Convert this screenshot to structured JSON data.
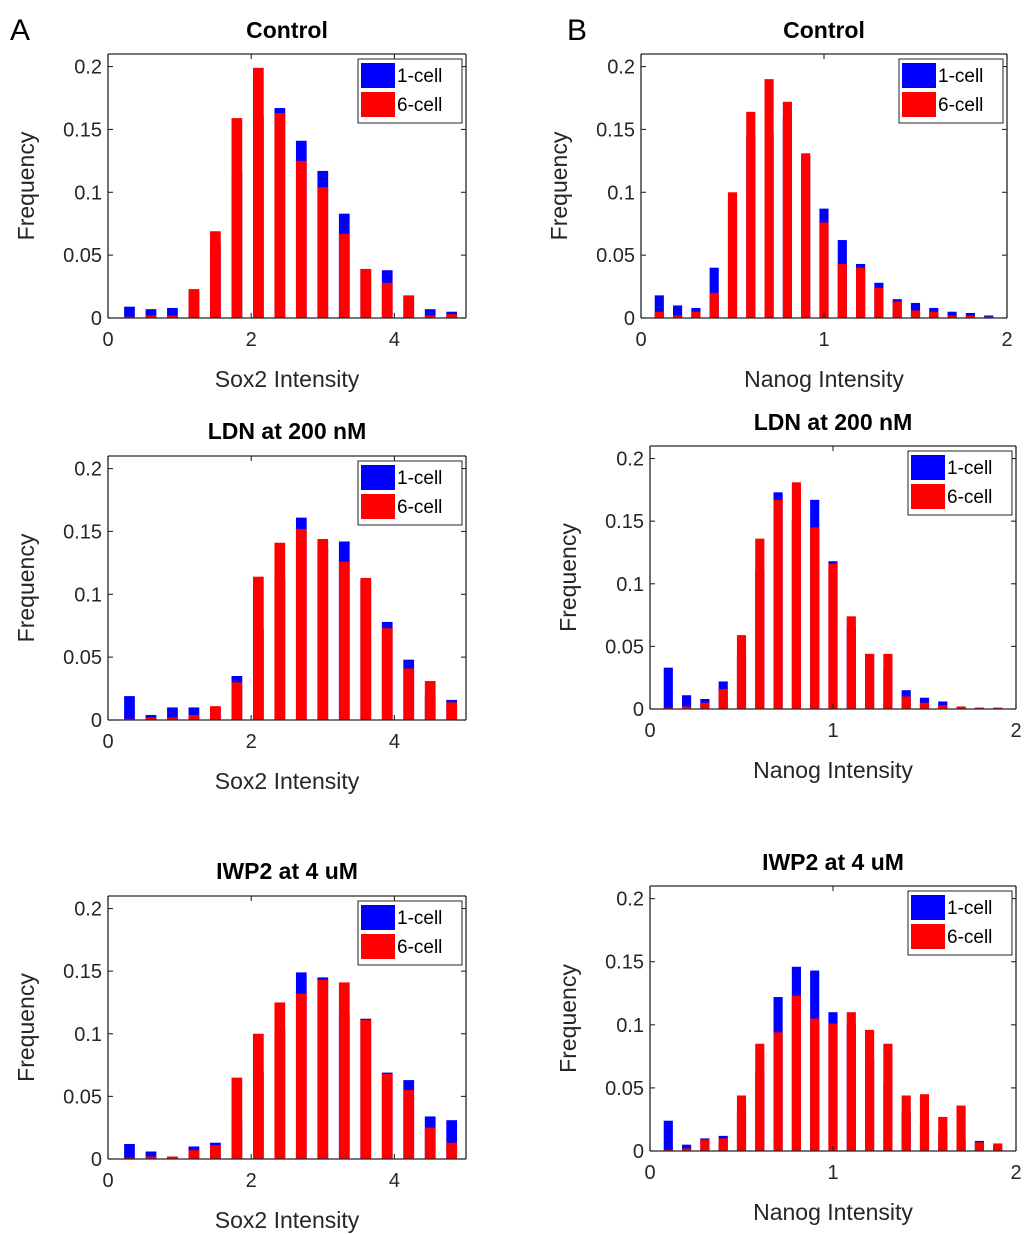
{
  "panel_labels": [
    "A",
    "B"
  ],
  "colors": {
    "series_1": "#0000ff",
    "series_2": "#ff0000",
    "axis": "#262626"
  },
  "chart_data": [
    {
      "type": "bar",
      "title": "Control",
      "xlabel": "Sox2 Intensity",
      "ylabel": "Frequency",
      "xlim": [
        0,
        5
      ],
      "ylim": [
        0,
        0.21
      ],
      "xticks": [
        0,
        2,
        4
      ],
      "yticks": [
        0,
        0.05,
        0.1,
        0.15,
        0.2
      ],
      "x": [
        0.3,
        0.6,
        0.9,
        1.2,
        1.5,
        1.8,
        2.1,
        2.4,
        2.7,
        3.0,
        3.3,
        3.6,
        3.9,
        4.2,
        4.5,
        4.8
      ],
      "series": [
        {
          "name": "1-cell",
          "values": [
            0.009,
            0.007,
            0.008,
            0.021,
            0.06,
            0.117,
            0.16,
            0.167,
            0.141,
            0.117,
            0.083,
            0.039,
            0.038,
            0.017,
            0.007,
            0.005
          ]
        },
        {
          "name": "6-cell",
          "values": [
            0.001,
            0.002,
            0.002,
            0.023,
            0.069,
            0.159,
            0.199,
            0.163,
            0.125,
            0.104,
            0.067,
            0.039,
            0.028,
            0.018,
            0.002,
            0.003
          ]
        }
      ],
      "legend": "top-right"
    },
    {
      "type": "bar",
      "title": "Control",
      "xlabel": "Nanog Intensity",
      "ylabel": "Frequency",
      "xlim": [
        0,
        2
      ],
      "ylim": [
        0,
        0.21
      ],
      "xticks": [
        0,
        1,
        2
      ],
      "yticks": [
        0,
        0.05,
        0.1,
        0.15,
        0.2
      ],
      "x": [
        0.1,
        0.2,
        0.3,
        0.4,
        0.5,
        0.6,
        0.7,
        0.8,
        0.9,
        1.0,
        1.1,
        1.2,
        1.3,
        1.4,
        1.5,
        1.6,
        1.7,
        1.8,
        1.9
      ],
      "series": [
        {
          "name": "1-cell",
          "values": [
            0.018,
            0.01,
            0.008,
            0.04,
            0.093,
            0.145,
            0.147,
            0.161,
            0.129,
            0.087,
            0.062,
            0.043,
            0.028,
            0.015,
            0.012,
            0.008,
            0.005,
            0.004,
            0.002
          ]
        },
        {
          "name": "6-cell",
          "values": [
            0.005,
            0.002,
            0.005,
            0.02,
            0.1,
            0.164,
            0.19,
            0.172,
            0.131,
            0.076,
            0.043,
            0.04,
            0.024,
            0.013,
            0.006,
            0.005,
            0.002,
            0.002,
            0.001
          ]
        }
      ],
      "legend": "top-right"
    },
    {
      "type": "bar",
      "title": "LDN at 200 nM",
      "xlabel": "Sox2 Intensity",
      "ylabel": "Frequency",
      "xlim": [
        0,
        5
      ],
      "ylim": [
        0,
        0.21
      ],
      "xticks": [
        0,
        2,
        4
      ],
      "yticks": [
        0,
        0.05,
        0.1,
        0.15,
        0.2
      ],
      "x": [
        0.3,
        0.6,
        0.9,
        1.2,
        1.5,
        1.8,
        2.1,
        2.4,
        2.7,
        3.0,
        3.3,
        3.6,
        3.9,
        4.2,
        4.5,
        4.8
      ],
      "series": [
        {
          "name": "1-cell",
          "values": [
            0.019,
            0.004,
            0.01,
            0.01,
            0.01,
            0.035,
            0.072,
            0.112,
            0.161,
            0.137,
            0.142,
            0.111,
            0.078,
            0.048,
            0.02,
            0.016
          ]
        },
        {
          "name": "6-cell",
          "values": [
            0.001,
            0.002,
            0.002,
            0.004,
            0.011,
            0.03,
            0.114,
            0.141,
            0.152,
            0.144,
            0.126,
            0.113,
            0.073,
            0.041,
            0.031,
            0.014
          ]
        }
      ],
      "legend": "top-right"
    },
    {
      "type": "bar",
      "title": "LDN at 200 nM",
      "xlabel": "Nanog Intensity",
      "ylabel": "Frequency",
      "xlim": [
        0,
        2
      ],
      "ylim": [
        0,
        0.21
      ],
      "xticks": [
        0,
        1,
        2
      ],
      "yticks": [
        0,
        0.05,
        0.1,
        0.15,
        0.2
      ],
      "x": [
        0.1,
        0.2,
        0.3,
        0.4,
        0.5,
        0.6,
        0.7,
        0.8,
        0.9,
        1.0,
        1.1,
        1.2,
        1.3,
        1.4,
        1.5,
        1.6,
        1.7,
        1.8,
        1.9
      ],
      "series": [
        {
          "name": "1-cell",
          "values": [
            0.033,
            0.011,
            0.008,
            0.022,
            0.043,
            0.111,
            0.173,
            0.151,
            0.167,
            0.118,
            0.066,
            0.044,
            0.031,
            0.015,
            0.009,
            0.006,
            0.002,
            0.001,
            0.001
          ]
        },
        {
          "name": "6-cell",
          "values": [
            0.001,
            0.002,
            0.005,
            0.016,
            0.059,
            0.136,
            0.167,
            0.181,
            0.145,
            0.116,
            0.074,
            0.044,
            0.044,
            0.01,
            0.005,
            0.003,
            0.002,
            0.001,
            0.001
          ]
        }
      ],
      "legend": "top-right"
    },
    {
      "type": "bar",
      "title": "IWP2 at 4 uM",
      "xlabel": "Sox2 Intensity",
      "ylabel": "Frequency",
      "xlim": [
        0,
        5
      ],
      "ylim": [
        0,
        0.21
      ],
      "xticks": [
        0,
        2,
        4
      ],
      "yticks": [
        0,
        0.05,
        0.1,
        0.15,
        0.2
      ],
      "x": [
        0.3,
        0.6,
        0.9,
        1.2,
        1.5,
        1.8,
        2.1,
        2.4,
        2.7,
        3.0,
        3.3,
        3.6,
        3.9,
        4.2,
        4.5,
        4.8
      ],
      "series": [
        {
          "name": "1-cell",
          "values": [
            0.012,
            0.006,
            0.002,
            0.01,
            0.013,
            0.031,
            0.07,
            0.103,
            0.149,
            0.145,
            0.116,
            0.112,
            0.069,
            0.063,
            0.034,
            0.031
          ]
        },
        {
          "name": "6-cell",
          "values": [
            0.001,
            0.002,
            0.002,
            0.007,
            0.011,
            0.065,
            0.1,
            0.125,
            0.132,
            0.143,
            0.141,
            0.111,
            0.068,
            0.055,
            0.025,
            0.013
          ]
        }
      ],
      "legend": "top-right"
    },
    {
      "type": "bar",
      "title": "IWP2 at 4 uM",
      "xlabel": "Nanog Intensity",
      "ylabel": "Frequency",
      "xlim": [
        0,
        2
      ],
      "ylim": [
        0,
        0.21
      ],
      "xticks": [
        0,
        1,
        2
      ],
      "yticks": [
        0,
        0.05,
        0.1,
        0.15,
        0.2
      ],
      "x": [
        0.1,
        0.2,
        0.3,
        0.4,
        0.5,
        0.6,
        0.7,
        0.8,
        0.9,
        1.0,
        1.1,
        1.2,
        1.3,
        1.4,
        1.5,
        1.6,
        1.7,
        1.8,
        1.9
      ],
      "series": [
        {
          "name": "1-cell",
          "values": [
            0.024,
            0.005,
            0.01,
            0.012,
            0.032,
            0.062,
            0.122,
            0.146,
            0.143,
            0.11,
            0.1,
            0.073,
            0.053,
            0.031,
            0.021,
            0.014,
            0.009,
            0.008,
            0.004
          ]
        },
        {
          "name": "6-cell",
          "values": [
            0.001,
            0.002,
            0.009,
            0.01,
            0.044,
            0.085,
            0.094,
            0.123,
            0.105,
            0.101,
            0.11,
            0.096,
            0.085,
            0.044,
            0.045,
            0.027,
            0.036,
            0.007,
            0.006
          ]
        }
      ],
      "legend": "top-right"
    }
  ]
}
